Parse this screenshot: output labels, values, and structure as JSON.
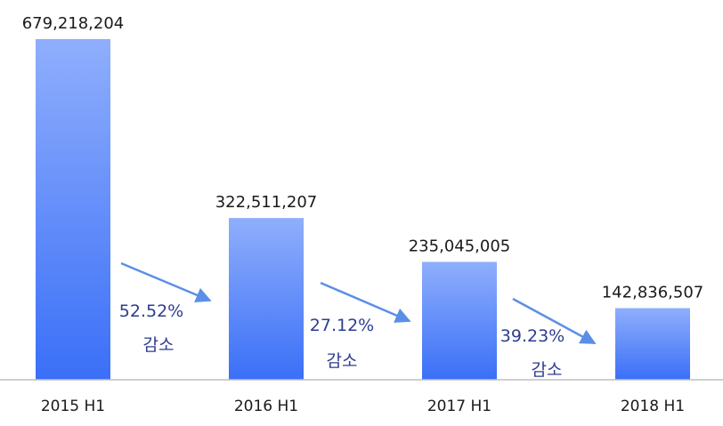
{
  "chart_data": {
    "type": "bar",
    "categories": [
      "2015 H1",
      "2016 H1",
      "2017 H1",
      "2018 H1"
    ],
    "values": [
      679218204,
      322511207,
      235045005,
      142836507
    ],
    "value_labels": [
      "679,218,204",
      "322,511,207",
      "235,045,005",
      "142,836,507"
    ],
    "ylim": [
      0,
      700000000
    ],
    "grid": false,
    "legend": "none",
    "annotations": [
      {
        "from": "2015 H1",
        "to": "2016 H1",
        "percent": "52.52%",
        "text": "감소"
      },
      {
        "from": "2016 H1",
        "to": "2017 H1",
        "percent": "27.12%",
        "text": "감소"
      },
      {
        "from": "2017 H1",
        "to": "2018 H1",
        "percent": "39.23%",
        "text": "감소"
      }
    ],
    "colors": {
      "bar_top": "#8faefc",
      "bar_bottom": "#3a6ff7",
      "arrow": "#5b8fe6",
      "annotation_text": "#2e3d8f",
      "axis": "#bfbfbf"
    }
  }
}
